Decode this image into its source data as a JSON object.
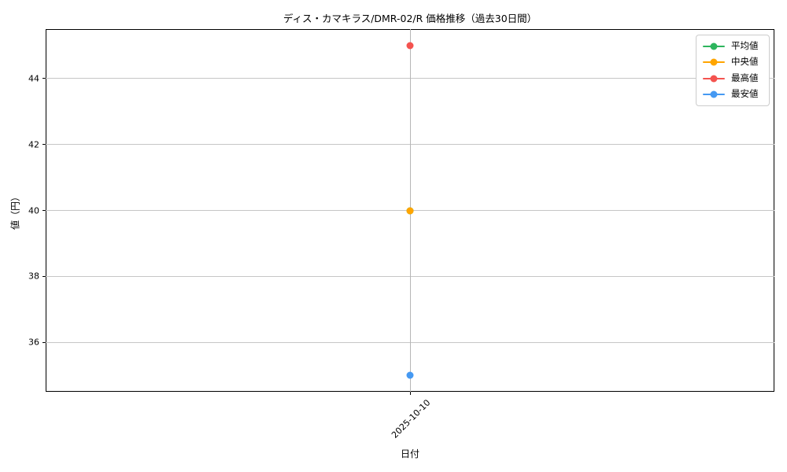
{
  "chart_data": {
    "type": "line",
    "title": "ディス・カマキラス/DMR-02/R 価格推移（過去30日間）",
    "xlabel": "日付",
    "ylabel": "値（円）",
    "x": [
      "2025-10-10"
    ],
    "series": [
      {
        "name": "平均値",
        "color": "#2db55d",
        "values": [
          40
        ]
      },
      {
        "name": "中央値",
        "color": "#ffa500",
        "values": [
          40
        ]
      },
      {
        "name": "最高値",
        "color": "#f4534f",
        "values": [
          45
        ]
      },
      {
        "name": "最安値",
        "color": "#4599f2",
        "values": [
          35
        ]
      }
    ],
    "ylim": [
      34.5,
      45.5
    ],
    "yticks": [
      36,
      38,
      40,
      42,
      44
    ],
    "grid": true,
    "legend_position": "upper right",
    "marker": "circle",
    "note_hidden_point": "平均値(40)の緑マーカーは中央値(40)のオレンジマーカーの下に重なって隠れている"
  }
}
